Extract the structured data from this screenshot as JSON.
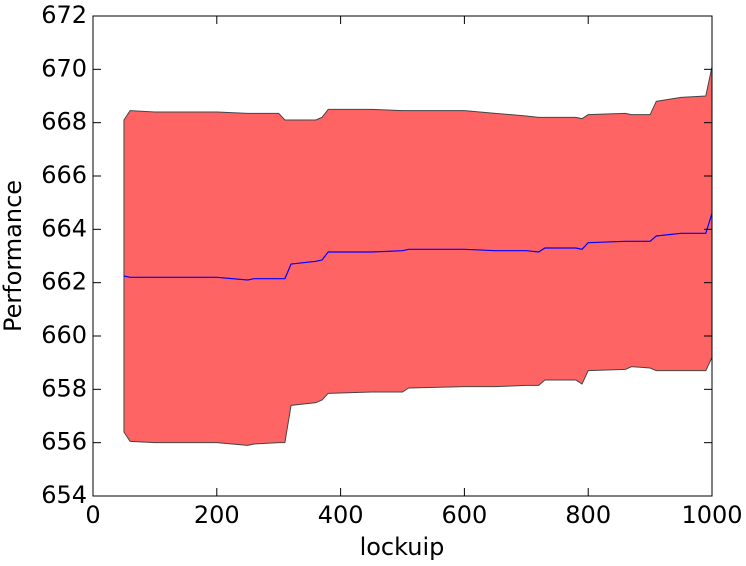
{
  "chart_data": {
    "type": "line",
    "xlabel": "lockuip",
    "ylabel": "Performance",
    "x": [
      50,
      60,
      100,
      150,
      200,
      250,
      260,
      300,
      310,
      320,
      360,
      370,
      380,
      450,
      500,
      510,
      600,
      650,
      700,
      720,
      730,
      780,
      790,
      800,
      860,
      870,
      900,
      910,
      950,
      990,
      1000
    ],
    "series": [
      {
        "color": "#0000ff",
        "values": [
          662.25,
          662.2,
          662.2,
          662.2,
          662.2,
          662.1,
          662.15,
          662.15,
          662.15,
          662.7,
          662.8,
          662.85,
          663.15,
          663.15,
          663.2,
          663.25,
          663.25,
          663.2,
          663.2,
          663.15,
          663.3,
          663.3,
          663.25,
          663.5,
          663.55,
          663.55,
          663.55,
          663.75,
          663.85,
          663.85,
          664.6
        ]
      }
    ],
    "fill_between": {
      "color": "#ff6464",
      "upper": [
        668.1,
        668.45,
        668.4,
        668.4,
        668.4,
        668.35,
        668.35,
        668.35,
        668.1,
        668.1,
        668.1,
        668.2,
        668.5,
        668.5,
        668.45,
        668.45,
        668.45,
        668.35,
        668.25,
        668.2,
        668.2,
        668.2,
        668.15,
        668.3,
        668.35,
        668.3,
        668.3,
        668.8,
        668.95,
        669.0,
        670.1
      ],
      "lower": [
        656.4,
        656.05,
        656.0,
        656.0,
        656.0,
        655.9,
        655.95,
        656.0,
        656.0,
        657.4,
        657.5,
        657.6,
        657.85,
        657.9,
        657.9,
        658.05,
        658.1,
        658.1,
        658.15,
        658.15,
        658.35,
        658.35,
        658.2,
        658.7,
        658.75,
        658.85,
        658.8,
        658.7,
        658.7,
        658.7,
        659.2
      ]
    },
    "xlim": [
      0,
      1000
    ],
    "xticks": [
      0,
      200,
      400,
      600,
      800,
      1000
    ],
    "ylim": [
      654,
      672
    ],
    "yticks": [
      654,
      656,
      658,
      660,
      662,
      664,
      666,
      668,
      670,
      672
    ]
  }
}
